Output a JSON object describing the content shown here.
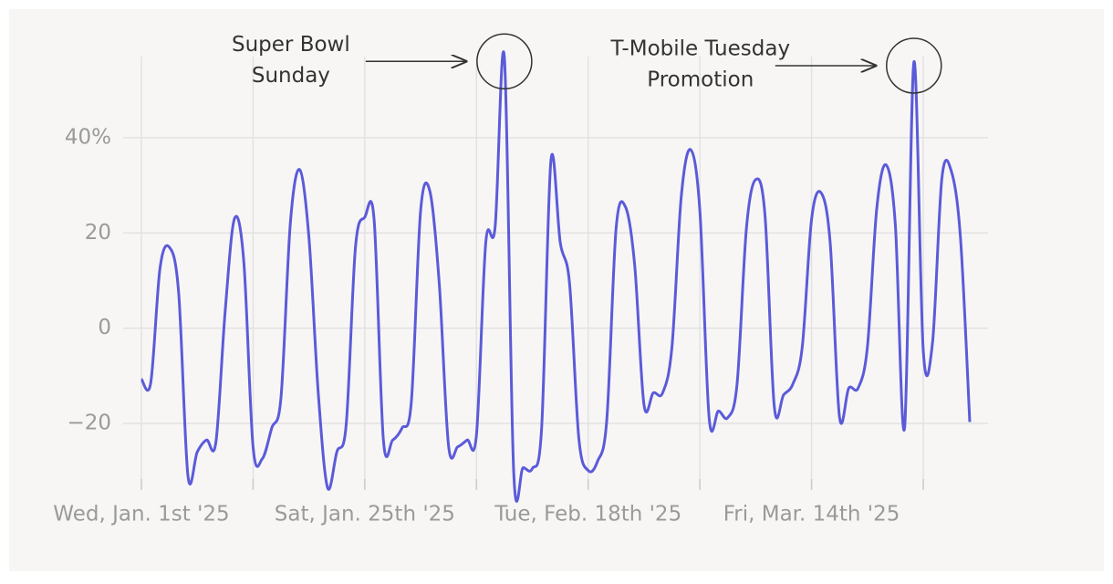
{
  "chart_data": {
    "type": "line",
    "x": [
      "2025-01-01",
      "2025-01-02",
      "2025-01-03",
      "2025-01-04",
      "2025-01-05",
      "2025-01-06",
      "2025-01-07",
      "2025-01-08",
      "2025-01-09",
      "2025-01-10",
      "2025-01-11",
      "2025-01-12",
      "2025-01-13",
      "2025-01-14",
      "2025-01-15",
      "2025-01-16",
      "2025-01-17",
      "2025-01-18",
      "2025-01-19",
      "2025-01-20",
      "2025-01-21",
      "2025-01-22",
      "2025-01-23",
      "2025-01-24",
      "2025-01-25",
      "2025-01-26",
      "2025-01-27",
      "2025-01-28",
      "2025-01-29",
      "2025-01-30",
      "2025-01-31",
      "2025-02-01",
      "2025-02-02",
      "2025-02-03",
      "2025-02-04",
      "2025-02-05",
      "2025-02-06",
      "2025-02-07",
      "2025-02-08",
      "2025-02-09",
      "2025-02-10",
      "2025-02-11",
      "2025-02-12",
      "2025-02-13",
      "2025-02-14",
      "2025-02-15",
      "2025-02-16",
      "2025-02-17",
      "2025-02-18",
      "2025-02-19",
      "2025-02-20",
      "2025-02-21",
      "2025-02-22",
      "2025-02-23",
      "2025-02-24",
      "2025-02-25",
      "2025-02-26",
      "2025-02-27",
      "2025-02-28",
      "2025-03-01",
      "2025-03-02",
      "2025-03-03",
      "2025-03-04",
      "2025-03-05",
      "2025-03-06",
      "2025-03-07",
      "2025-03-08",
      "2025-03-09",
      "2025-03-10",
      "2025-03-11",
      "2025-03-12",
      "2025-03-13",
      "2025-03-14",
      "2025-03-15",
      "2025-03-16",
      "2025-03-17",
      "2025-03-18",
      "2025-03-19",
      "2025-03-20",
      "2025-03-21",
      "2025-03-22",
      "2025-03-23",
      "2025-03-24",
      "2025-03-25",
      "2025-03-26",
      "2025-03-27",
      "2025-03-28",
      "2025-03-29",
      "2025-03-30",
      "2025-03-31"
    ],
    "series": [
      {
        "color": "#5b5bd9",
        "values": [
          -10.7,
          -11.5,
          12.6,
          17,
          7.5,
          -31,
          -26,
          -23.5,
          -24,
          3.6,
          23,
          14,
          -25,
          -27.4,
          -21,
          -14.5,
          22,
          33.3,
          19,
          -13.6,
          -33.5,
          -26,
          -20.3,
          17,
          23.3,
          22.8,
          -23.5,
          -23.5,
          -21,
          -15.5,
          24.7,
          28.7,
          9.4,
          -24.7,
          -24.9,
          -23.5,
          -22.4,
          18,
          21.2,
          56.8,
          -30.2,
          -29.3,
          -29.5,
          -21,
          35.2,
          18,
          9.4,
          -23.2,
          -29.9,
          -28,
          -19.3,
          20.9,
          25.5,
          13.2,
          -16.1,
          -13.6,
          -13.6,
          -4,
          27.6,
          37.5,
          24.7,
          -18.9,
          -17.4,
          -18.8,
          -11.7,
          20.9,
          31.2,
          23.7,
          -16.5,
          -14,
          -11.7,
          -4,
          22.8,
          28.5,
          18,
          -18.6,
          -12.6,
          -12.6,
          -4,
          25,
          34.3,
          21.8,
          -20.9,
          55.9,
          -4.6,
          -3,
          31.4,
          33.1,
          19,
          -19.7
        ]
      }
    ],
    "xlim": [
      "2025-01-01",
      "2025-03-31"
    ],
    "xticks": [
      {
        "value": "2025-01-01",
        "label": "Wed, Jan. 1st '25"
      },
      "2025-01-13",
      {
        "value": "2025-01-25",
        "label": "Sat, Jan. 25th '25"
      },
      "2025-02-06",
      {
        "value": "2025-02-18",
        "label": "Tue, Feb. 18th '25"
      },
      "2025-03-02",
      {
        "value": "2025-03-14",
        "label": "Fri, Mar. 14th '25"
      },
      "2025-03-26"
    ],
    "ylim": [
      -34,
      58
    ],
    "yticks": [
      {
        "value": 40,
        "label": "40%"
      },
      20,
      0,
      {
        "value": -20,
        "label": "−20"
      }
    ],
    "grid": true,
    "annotations": [
      {
        "text": [
          "Super Bowl",
          "Sunday"
        ],
        "x": "2025-02-09"
      },
      {
        "text": [
          "T-Mobile Tuesday",
          "Promotion"
        ],
        "x": "2025-03-25"
      }
    ]
  }
}
